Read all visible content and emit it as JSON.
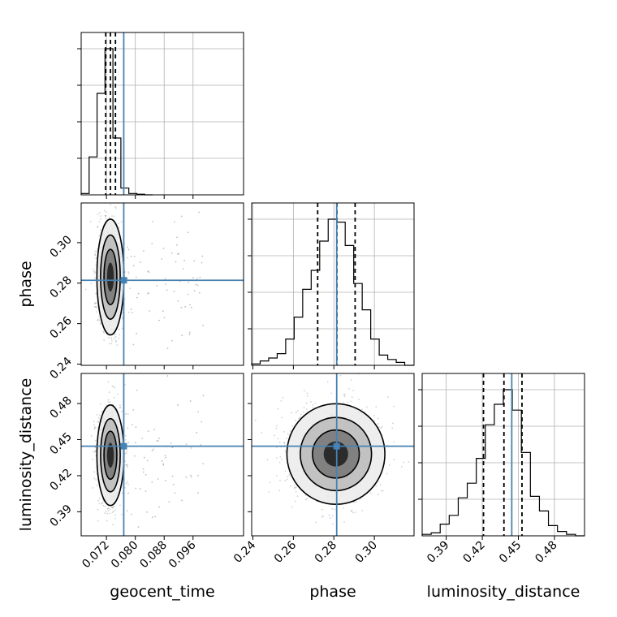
{
  "chart_data": {
    "type": "corner",
    "parameters": [
      {
        "label": "geocent_time",
        "range": [
          0.065,
          0.11
        ],
        "ticks": [
          0.072,
          0.08,
          0.088,
          0.096
        ],
        "tick_labels": [
          "0.072",
          "0.080",
          "0.088",
          "0.096"
        ],
        "truth": 0.0768,
        "quantiles": [
          0.0718,
          0.0731,
          0.0745
        ]
      },
      {
        "label": "phase",
        "range": [
          0.2394,
          0.3196
        ],
        "ticks": [
          0.24,
          0.26,
          0.28,
          0.3
        ],
        "tick_labels": [
          "0.24",
          "0.26",
          "0.28",
          "0.30"
        ],
        "truth": 0.2814,
        "quantiles": [
          0.272,
          0.2815,
          0.2905
        ]
      },
      {
        "label": "luminosity_distance",
        "range": [
          0.37,
          0.505
        ],
        "ticks": [
          0.39,
          0.42,
          0.45,
          0.48
        ],
        "tick_labels": [
          "0.39",
          "0.42",
          "0.45",
          "0.48"
        ],
        "truth": 0.4445,
        "quantiles": [
          0.421,
          0.438,
          0.453
        ]
      }
    ],
    "histograms": [
      {
        "param": 0,
        "bins": [
          0.065,
          0.0672,
          0.0694,
          0.0716,
          0.0738,
          0.076,
          0.0782,
          0.0804,
          0.0826,
          0.0848
        ],
        "counts": [
          1,
          28,
          75,
          108,
          42,
          5,
          1,
          0.5,
          0
        ]
      },
      {
        "param": 1,
        "bins": [
          0.2394,
          0.2436,
          0.2478,
          0.252,
          0.2562,
          0.2604,
          0.2646,
          0.2688,
          0.273,
          0.2772,
          0.2814,
          0.2856,
          0.2898,
          0.294,
          0.2982,
          0.3024,
          0.3066,
          0.3108,
          0.315,
          0.3196
        ],
        "counts": [
          1,
          3,
          5,
          8,
          18,
          33,
          52,
          65,
          85,
          100,
          98,
          82,
          56,
          38,
          18,
          7,
          4,
          2,
          0
        ]
      },
      {
        "param": 2,
        "bins": [
          0.37,
          0.3775,
          0.385,
          0.3925,
          0.4,
          0.4075,
          0.415,
          0.4225,
          0.43,
          0.4375,
          0.445,
          0.4525,
          0.46,
          0.4675,
          0.475,
          0.4825,
          0.49,
          0.4975,
          0.505
        ],
        "counts": [
          1,
          2,
          8,
          14,
          26,
          36,
          53,
          76,
          90,
          100,
          86,
          57,
          27,
          17,
          7,
          3,
          1,
          0
        ]
      }
    ],
    "pairs": [
      {
        "x": 0,
        "y": 1,
        "center": [
          0.0731,
          0.283
        ],
        "spread": [
          0.0017,
          0.013
        ],
        "outlier_range": [
          0.077,
          0.099
        ]
      },
      {
        "x": 0,
        "y": 2,
        "center": [
          0.0731,
          0.437
        ],
        "spread": [
          0.0017,
          0.019
        ],
        "outlier_range": [
          0.077,
          0.099
        ]
      },
      {
        "x": 1,
        "y": 2,
        "center": [
          0.281,
          0.438
        ],
        "spread": [
          0.011,
          0.019
        ],
        "outlier_range": null
      }
    ],
    "truth_color": "#4682b4",
    "grid": true
  }
}
